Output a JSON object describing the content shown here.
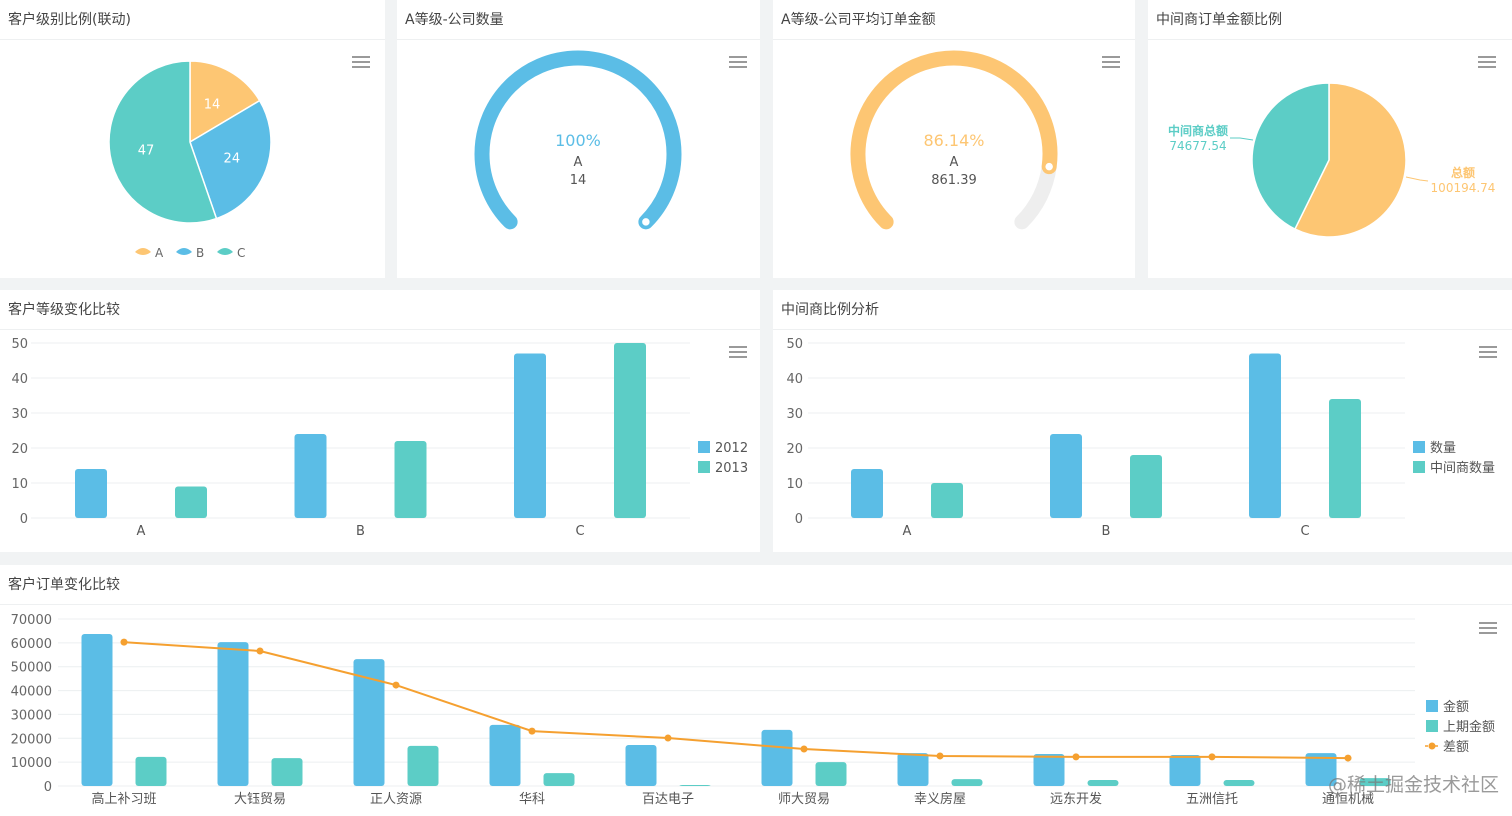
{
  "colors": {
    "blue": "#5bbde6",
    "teal": "#5ccdc6",
    "orange": "#fdc673",
    "line": "#f5a030",
    "track": "#eeeeee"
  },
  "menu_icon": "hamburger-menu-icon",
  "watermark": "@稀土掘金技术社区",
  "chart_data": [
    {
      "type": "pie",
      "title": "客户级别比例(联动)",
      "legend_position": "bottom",
      "slices": [
        {
          "label": "A",
          "value": 14,
          "color": "#fdc673"
        },
        {
          "label": "B",
          "value": 24,
          "color": "#5bbde6"
        },
        {
          "label": "C",
          "value": 47,
          "color": "#5ccdc6"
        }
      ]
    },
    {
      "type": "gauge",
      "title": "A等级-公司数量",
      "percent": 100,
      "percent_label": "100%",
      "name": "A",
      "value": "14",
      "color": "#5bbde6"
    },
    {
      "type": "gauge",
      "title": "A等级-公司平均订单金额",
      "percent": 86.14,
      "percent_label": "86.14%",
      "name": "A",
      "value": "861.39",
      "color": "#fdc673"
    },
    {
      "type": "pie",
      "title": "中间商订单金额比例",
      "slices": [
        {
          "label": "总额",
          "value": 100194.74,
          "value_label": "100194.74",
          "color": "#fdc673"
        },
        {
          "label": "中间商总额",
          "value": 74677.54,
          "value_label": "74677.54",
          "color": "#5ccdc6"
        }
      ]
    },
    {
      "type": "bar",
      "title": "客户等级变化比较",
      "categories": [
        "A",
        "B",
        "C"
      ],
      "ylim": [
        0,
        50
      ],
      "yticks": [
        "0",
        "10",
        "20",
        "30",
        "40",
        "50"
      ],
      "legend_position": "right",
      "grid": true,
      "series": [
        {
          "name": "2012",
          "values": [
            14,
            24,
            47
          ],
          "color": "#5bbde6"
        },
        {
          "name": "2013",
          "values": [
            9,
            22,
            50
          ],
          "color": "#5ccdc6"
        }
      ]
    },
    {
      "type": "bar",
      "title": "中间商比例分析",
      "categories": [
        "A",
        "B",
        "C"
      ],
      "ylim": [
        0,
        50
      ],
      "yticks": [
        "0",
        "10",
        "20",
        "30",
        "40",
        "50"
      ],
      "legend_position": "right",
      "grid": true,
      "series": [
        {
          "name": "数量",
          "values": [
            14,
            24,
            47
          ],
          "color": "#5bbde6"
        },
        {
          "name": "中间商数量",
          "values": [
            10,
            18,
            34
          ],
          "color": "#5ccdc6"
        }
      ]
    },
    {
      "type": "bar",
      "title": "客户订单变化比较",
      "categories": [
        "高上补习班",
        "大钰贸易",
        "正人资源",
        "华科",
        "百达电子",
        "师大贸易",
        "幸义房屋",
        "远东开发",
        "五洲信托",
        "通恒机械"
      ],
      "ylim": [
        0,
        70000
      ],
      "yticks": [
        "0",
        "10000",
        "20000",
        "30000",
        "40000",
        "50000",
        "60000",
        "70000"
      ],
      "legend_position": "right",
      "grid": true,
      "series": [
        {
          "name": "金额",
          "kind": "bar",
          "values": [
            63700,
            60300,
            53200,
            25600,
            17200,
            23500,
            13800,
            13400,
            13000,
            13800
          ],
          "color": "#5bbde6"
        },
        {
          "name": "上期金额",
          "kind": "bar",
          "values": [
            12200,
            11700,
            16800,
            5400,
            400,
            10000,
            2900,
            2500,
            2500,
            3300
          ],
          "color": "#5ccdc6"
        },
        {
          "name": "差额",
          "kind": "line",
          "values": [
            60300,
            56600,
            42300,
            23000,
            20100,
            15500,
            12600,
            12200,
            12200,
            11700
          ],
          "color": "#f5a030"
        }
      ]
    }
  ]
}
